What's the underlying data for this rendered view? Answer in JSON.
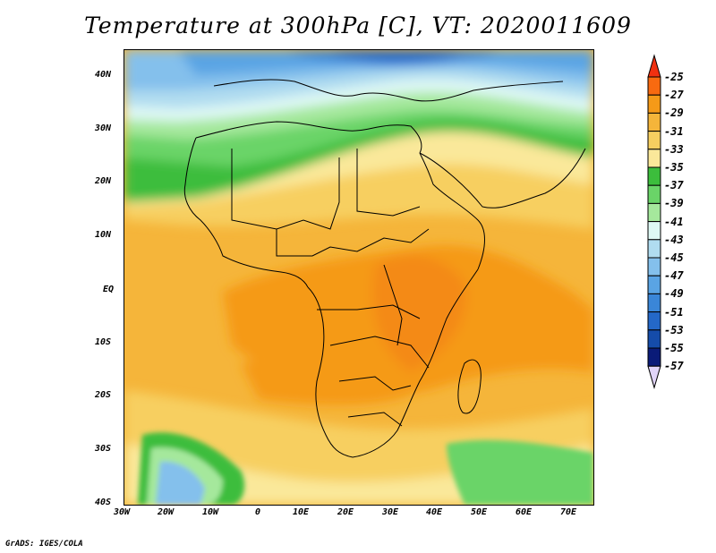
{
  "title": "Temperature at 300hPa [C], VT: 2020011609",
  "credit": "GrADS: IGES/COLA",
  "lat_labels": [
    "40N",
    "30N",
    "20N",
    "10N",
    "EQ",
    "10S",
    "20S",
    "30S",
    "40S"
  ],
  "lon_labels": [
    "30W",
    "20W",
    "10W",
    "0",
    "10E",
    "20E",
    "30E",
    "40E",
    "50E",
    "60E",
    "70E"
  ],
  "colorbar": {
    "labels": [
      "-25",
      "-27",
      "-29",
      "-31",
      "-33",
      "-35",
      "-37",
      "-39",
      "-41",
      "-43",
      "-45",
      "-47",
      "-49",
      "-51",
      "-53",
      "-55",
      "-57"
    ],
    "colors": [
      "#f03010",
      "#f86a10",
      "#f59a18",
      "#f5b53a",
      "#f7cf60",
      "#fae89a",
      "#3cbd3c",
      "#6ad468",
      "#a5e89c",
      "#def8f4",
      "#b0dcf0",
      "#84c0ec",
      "#5aa4e4",
      "#3a86d8",
      "#2468c8",
      "#154caa",
      "#0a1b78",
      "#e0d4f8"
    ]
  }
}
